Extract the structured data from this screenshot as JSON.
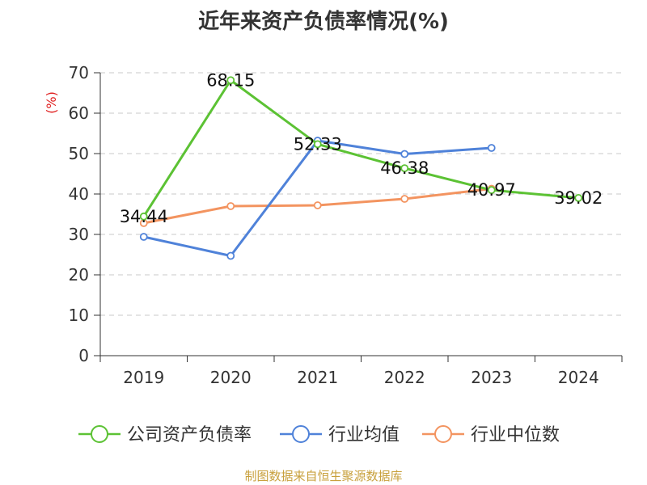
{
  "title": "近年来资产负债率情况(%)",
  "source": "制图数据来自恒生聚源数据库",
  "chart_data": {
    "type": "line",
    "title": "近年来资产负债率情况(%)",
    "ylabel": "(%)",
    "xlabel": "",
    "categories": [
      "2019",
      "2020",
      "2021",
      "2022",
      "2023",
      "2024"
    ],
    "ylim": [
      0,
      70
    ],
    "yticks": [
      0,
      10,
      20,
      30,
      40,
      50,
      60,
      70
    ],
    "grid": true,
    "legend_position": "bottom",
    "series": [
      {
        "name": "公司资产负债率",
        "color": "#5cc234",
        "values": [
          34.44,
          68.15,
          52.33,
          46.38,
          40.97,
          39.02
        ],
        "labels": [
          "34.44",
          "68.15",
          "52.33",
          "46.38",
          "40.97",
          "39.02"
        ]
      },
      {
        "name": "行业均值",
        "color": "#4f82d9",
        "values": [
          29.4,
          24.7,
          53.2,
          49.9,
          51.4,
          null
        ]
      },
      {
        "name": "行业中位数",
        "color": "#f39460",
        "values": [
          32.8,
          37.0,
          37.2,
          38.8,
          41.3,
          null
        ]
      }
    ]
  }
}
